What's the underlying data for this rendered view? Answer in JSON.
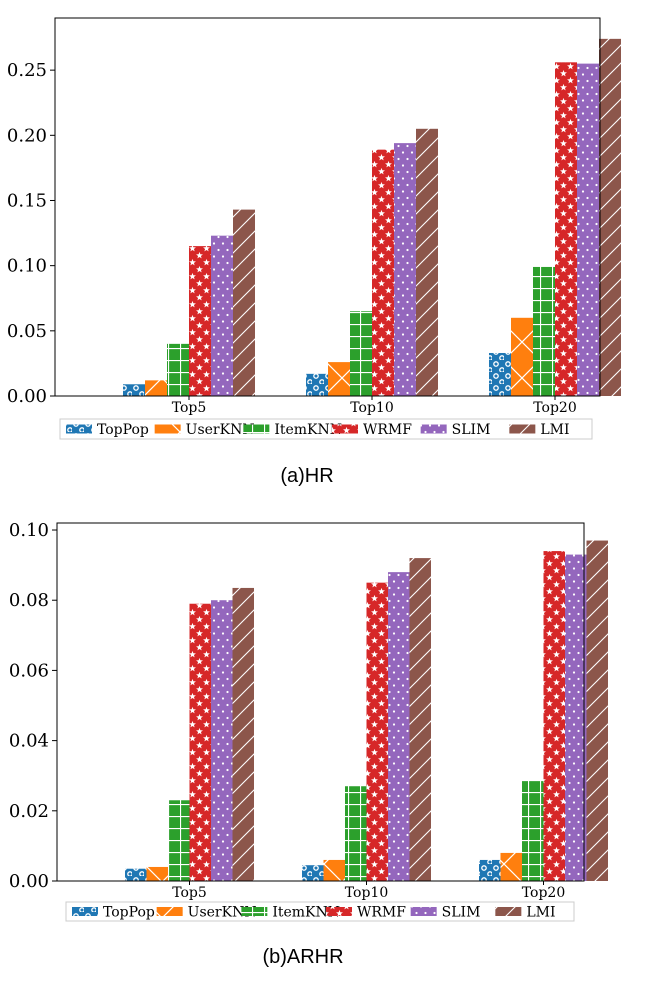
{
  "colors": {
    "TopPop": "#1f77b4",
    "UserKNN": "#ff7f0e",
    "ItemKNN": "#2ca02c",
    "WRMF": "#d62728",
    "SLIM": "#9467bd",
    "LMI": "#8c564b"
  },
  "hatches": {
    "TopPop": "circles",
    "UserKNN": "cross",
    "ItemKNN": "grid",
    "WRMF": "stars",
    "SLIM": "dots",
    "LMI": "diagonal"
  },
  "chart_data": [
    {
      "type": "bar",
      "caption": "(a)HR",
      "categories": [
        "Top5",
        "Top10",
        "Top20"
      ],
      "ylim": [
        0,
        0.29
      ],
      "yticks": [
        "0.00",
        "0.05",
        "0.10",
        "0.15",
        "0.20",
        "0.25"
      ],
      "ytick_values": [
        0,
        0.05,
        0.1,
        0.15,
        0.2,
        0.25
      ],
      "legend_placement": "below",
      "series": [
        {
          "name": "TopPop",
          "values": [
            0.009,
            0.017,
            0.033
          ]
        },
        {
          "name": "UserKNN",
          "values": [
            0.012,
            0.026,
            0.06
          ]
        },
        {
          "name": "ItemKNN",
          "values": [
            0.04,
            0.065,
            0.099
          ]
        },
        {
          "name": "WRMF",
          "values": [
            0.115,
            0.189,
            0.256
          ]
        },
        {
          "name": "SLIM",
          "values": [
            0.123,
            0.194,
            0.255
          ]
        },
        {
          "name": "LMI",
          "values": [
            0.143,
            0.205,
            0.274
          ]
        }
      ]
    },
    {
      "type": "bar",
      "caption": "(b)ARHR",
      "categories": [
        "Top5",
        "Top10",
        "Top20"
      ],
      "ylim": [
        0,
        0.102
      ],
      "yticks": [
        "0.00",
        "0.02",
        "0.04",
        "0.06",
        "0.08",
        "0.10"
      ],
      "ytick_values": [
        0,
        0.02,
        0.04,
        0.06,
        0.08,
        0.1
      ],
      "legend_placement": "below",
      "series": [
        {
          "name": "TopPop",
          "values": [
            0.0035,
            0.0045,
            0.006
          ]
        },
        {
          "name": "UserKNN",
          "values": [
            0.004,
            0.006,
            0.008
          ]
        },
        {
          "name": "ItemKNN",
          "values": [
            0.023,
            0.027,
            0.0285
          ]
        },
        {
          "name": "WRMF",
          "values": [
            0.079,
            0.085,
            0.094
          ]
        },
        {
          "name": "SLIM",
          "values": [
            0.08,
            0.088,
            0.093
          ]
        },
        {
          "name": "LMI",
          "values": [
            0.0835,
            0.092,
            0.097
          ]
        }
      ]
    }
  ]
}
